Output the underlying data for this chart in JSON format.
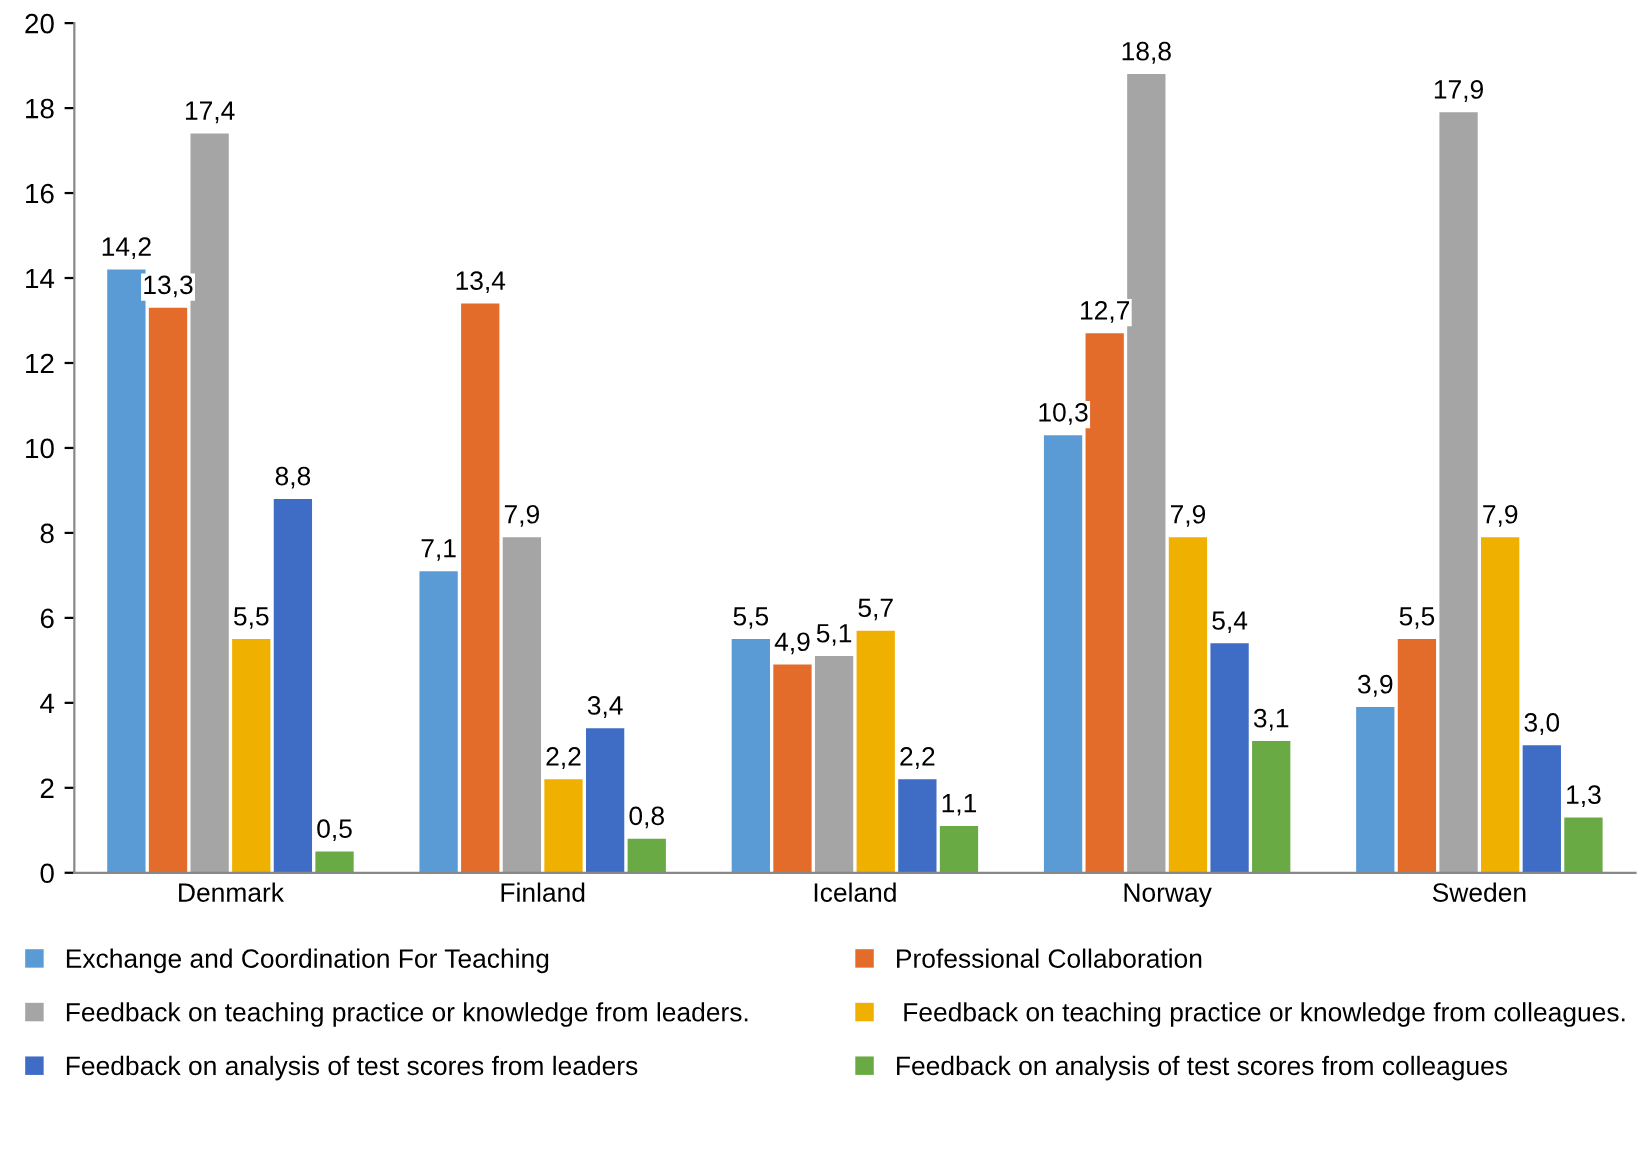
{
  "chart_data": {
    "type": "bar",
    "categories": [
      "Denmark",
      "Finland",
      "Iceland",
      "Norway",
      "Sweden"
    ],
    "series": [
      {
        "name": "Exchange and Coordination For Teaching",
        "color": "#5b9bd5",
        "values": [
          14.2,
          7.1,
          5.5,
          10.3,
          3.9
        ],
        "value_labels": [
          "14,2",
          "7,1",
          "5,5",
          "10,3",
          "3,9"
        ]
      },
      {
        "name": "Professional Collaboration",
        "color": "#e36c2b",
        "values": [
          13.3,
          13.4,
          4.9,
          12.7,
          5.5
        ],
        "value_labels": [
          "13,3",
          "13,4",
          "4,9",
          "12,7",
          "5,5"
        ]
      },
      {
        "name": "Feedback on teaching practice or knowledge from leaders.",
        "color": "#a5a5a5",
        "values": [
          17.4,
          7.9,
          5.1,
          18.8,
          17.9
        ],
        "value_labels": [
          "17,4",
          "7,9",
          "5,1",
          "18,8",
          "17,9"
        ]
      },
      {
        "name": " Feedback on teaching practice or knowledge from colleagues.",
        "color": "#f0b000",
        "values": [
          5.5,
          2.2,
          5.7,
          7.9,
          7.9
        ],
        "value_labels": [
          "5,5",
          "2,2",
          "5,7",
          "7,9",
          "7,9"
        ]
      },
      {
        "name": "Feedback on analysis of test scores from leaders",
        "color": "#3f6cc4",
        "values": [
          8.8,
          3.4,
          2.2,
          5.4,
          3.0
        ],
        "value_labels": [
          "8,8",
          "3,4",
          "2,2",
          "5,4",
          "3,0"
        ]
      },
      {
        "name": "Feedback on analysis of test scores from colleagues",
        "color": "#6aaa45",
        "values": [
          0.5,
          0.8,
          1.1,
          3.1,
          1.3
        ],
        "value_labels": [
          "0,5",
          "0,8",
          "1,1",
          "3,1",
          "1,3"
        ]
      }
    ],
    "ylim": [
      0,
      20
    ],
    "yticks": [
      0,
      2,
      4,
      6,
      8,
      10,
      12,
      14,
      16,
      18,
      20
    ],
    "grid": false,
    "legend": "bottom"
  }
}
